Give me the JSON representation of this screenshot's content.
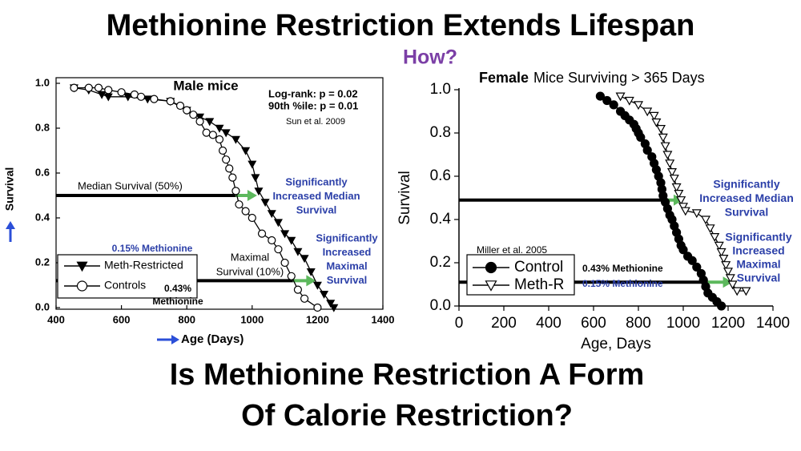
{
  "title": "Methionine Restriction Extends Lifespan",
  "subtitle": "How?",
  "question": [
    "Is Methionine Restriction A Form",
    "Of Calorie Restriction?"
  ],
  "chart_data": [
    {
      "type": "line",
      "title": "Male mice",
      "xlabel": "Age (Days)",
      "ylabel": "Survival",
      "xlim": [
        400,
        1400
      ],
      "xticks": [
        400,
        600,
        800,
        1000,
        1200,
        1400
      ],
      "ylim": [
        0,
        1
      ],
      "yticks": [
        {
          "value": 0,
          "label": "0.0"
        },
        0.2,
        0.4,
        0.6,
        0.8,
        {
          "value": 1,
          "label": "1.0"
        }
      ],
      "series": [
        {
          "name": "Meth-Restricted",
          "color": "#000000",
          "marker": "triangle-down",
          "filled": true,
          "x": [
            455,
            500,
            540,
            560,
            620,
            680,
            750,
            800,
            840,
            870,
            900,
            920,
            950,
            980,
            1000,
            1010,
            1020,
            1040,
            1060,
            1080,
            1100,
            1120,
            1140,
            1160,
            1180,
            1200,
            1220,
            1240,
            1250
          ],
          "values": [
            0.98,
            0.97,
            0.95,
            0.94,
            0.94,
            0.93,
            0.92,
            0.88,
            0.85,
            0.83,
            0.8,
            0.78,
            0.75,
            0.7,
            0.64,
            0.58,
            0.52,
            0.47,
            0.42,
            0.38,
            0.33,
            0.3,
            0.25,
            0.22,
            0.16,
            0.1,
            0.06,
            0.02,
            0
          ]
        },
        {
          "name": "Controls",
          "color": "#000000",
          "marker": "circle",
          "filled": false,
          "x": [
            455,
            500,
            530,
            560,
            600,
            640,
            660,
            700,
            750,
            780,
            800,
            820,
            840,
            860,
            880,
            900,
            910,
            920,
            930,
            940,
            950,
            960,
            980,
            1000,
            1030,
            1060,
            1080,
            1100,
            1120,
            1140,
            1160,
            1200
          ],
          "values": [
            0.98,
            0.98,
            0.98,
            0.97,
            0.96,
            0.95,
            0.94,
            0.93,
            0.92,
            0.9,
            0.88,
            0.86,
            0.83,
            0.78,
            0.77,
            0.75,
            0.7,
            0.66,
            0.62,
            0.58,
            0.52,
            0.46,
            0.43,
            0.4,
            0.33,
            0.3,
            0.26,
            0.2,
            0.14,
            0.08,
            0.04,
            0
          ]
        }
      ],
      "reference_lines": [
        {
          "y": 0.5,
          "x": [
            400,
            950
          ],
          "arrow_to": 1015
        },
        {
          "y": 0.12,
          "x": [
            400,
            1125
          ],
          "arrow_to": 1195
        }
      ],
      "annotations": [
        {
          "lines": [
            "Log-rank: p = 0.02",
            "90th %ile: p = 0.01"
          ],
          "color": "#000000"
        },
        {
          "lines": [
            "Sun et al. 2009"
          ],
          "color": "#000000"
        },
        {
          "lines": [
            "Median Survival (50%)"
          ],
          "color": "#000000"
        },
        {
          "lines": [
            "Maximal",
            "Survival (10%)"
          ],
          "color": "#000000"
        },
        {
          "lines": [
            "Significantly",
            "Increased Median",
            "Survival"
          ],
          "color": "#2b3fa8"
        },
        {
          "lines": [
            "Significantly",
            "Increased",
            "Maximal",
            "Survival"
          ],
          "color": "#2b3fa8"
        },
        {
          "lines": [
            "0.15% Methionine"
          ],
          "color": "#2b3fa8"
        },
        {
          "lines": [
            "0.43%",
            "Methionine"
          ],
          "color": "#000000"
        }
      ]
    },
    {
      "type": "line",
      "title_bold": "Female",
      "title": "Mice Surviving > 365 Days",
      "xlabel": "Age, Days",
      "ylabel": "Survival",
      "xlim": [
        0,
        1400
      ],
      "xticks": [
        0,
        200,
        400,
        600,
        800,
        1000,
        1200,
        1400
      ],
      "ylim": [
        0,
        1
      ],
      "yticks": [
        {
          "value": 0,
          "label": "0.0"
        },
        0.2,
        0.4,
        0.6,
        0.8,
        {
          "value": 1,
          "label": "1.0"
        }
      ],
      "series": [
        {
          "name": "Control",
          "color": "#000000",
          "marker": "circle",
          "filled": true,
          "x": [
            630,
            660,
            690,
            720,
            740,
            760,
            780,
            790,
            800,
            810,
            830,
            840,
            860,
            870,
            880,
            890,
            900,
            905,
            910,
            920,
            930,
            940,
            950,
            960,
            970,
            980,
            990,
            1000,
            1020,
            1040,
            1060,
            1080,
            1090,
            1100,
            1110,
            1130,
            1150,
            1170
          ],
          "values": [
            0.97,
            0.95,
            0.93,
            0.9,
            0.88,
            0.86,
            0.84,
            0.82,
            0.8,
            0.78,
            0.75,
            0.72,
            0.69,
            0.66,
            0.63,
            0.6,
            0.57,
            0.54,
            0.51,
            0.48,
            0.45,
            0.42,
            0.4,
            0.37,
            0.34,
            0.31,
            0.28,
            0.26,
            0.23,
            0.21,
            0.18,
            0.15,
            0.12,
            0.09,
            0.06,
            0.04,
            0.02,
            0
          ]
        },
        {
          "name": "Meth-R",
          "color": "#000000",
          "marker": "triangle-down",
          "filled": false,
          "x": [
            720,
            760,
            800,
            840,
            870,
            880,
            900,
            910,
            920,
            930,
            940,
            950,
            960,
            970,
            980,
            990,
            1000,
            1010,
            1060,
            1100,
            1120,
            1140,
            1160,
            1170,
            1180,
            1190,
            1200,
            1210,
            1220,
            1240,
            1280
          ],
          "values": [
            0.97,
            0.95,
            0.93,
            0.9,
            0.88,
            0.85,
            0.82,
            0.78,
            0.74,
            0.7,
            0.66,
            0.62,
            0.59,
            0.55,
            0.52,
            0.49,
            0.46,
            0.44,
            0.43,
            0.4,
            0.36,
            0.32,
            0.28,
            0.25,
            0.22,
            0.19,
            0.16,
            0.13,
            0.1,
            0.07,
            0.07
          ]
        }
      ],
      "reference_lines": [
        {
          "y": 0.49,
          "x": [
            0,
            905
          ],
          "arrow_to": 1000
        },
        {
          "y": 0.11,
          "x": [
            0,
            1110
          ],
          "arrow_to": 1220
        }
      ],
      "annotations": [
        {
          "lines": [
            "Miller et al. 2005"
          ],
          "color": "#000000"
        },
        {
          "lines": [
            "0.43% Methionine"
          ],
          "color": "#000000"
        },
        {
          "lines": [
            "0.15% Methionine"
          ],
          "color": "#2b3fa8"
        },
        {
          "lines": [
            "Significantly",
            "Increased Median",
            "Survival"
          ],
          "color": "#2b3fa8"
        },
        {
          "lines": [
            "Significantly",
            "Increased",
            "Maximal",
            "Survival"
          ],
          "color": "#2b3fa8"
        }
      ]
    }
  ]
}
